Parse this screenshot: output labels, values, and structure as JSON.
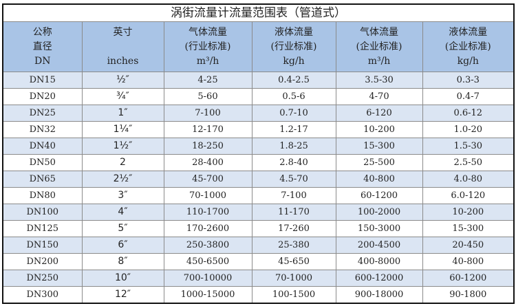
{
  "title": "涡街流量计流量范围表（管道式）",
  "headers": [
    {
      "l1": "公称",
      "l2": "直径",
      "l3": "DN"
    },
    {
      "l1": "英寸",
      "l2": "",
      "l3": "inches"
    },
    {
      "l1": "气体流量",
      "l2": "(行业标准)",
      "l3": "m³/h"
    },
    {
      "l1": "液体流量",
      "l2": "(行业标准)",
      "l3": "kg/h"
    },
    {
      "l1": "气体流量",
      "l2": "(企业标准)",
      "l3": "m³/h"
    },
    {
      "l1": "液体流量",
      "l2": "(企业标准)",
      "l3": "kg/h"
    }
  ],
  "rows": [
    [
      "DN15",
      "½″",
      "4-25",
      "0.4-2.5",
      "3.5-30",
      "0.3-3"
    ],
    [
      "DN20",
      "¾″",
      "5-60",
      "0.5-6",
      "4-70",
      "0.4-7"
    ],
    [
      "DN25",
      "1″",
      "7-100",
      "0.7-10",
      "6-120",
      "0.6-12"
    ],
    [
      "DN32",
      "1¼″",
      "12-170",
      "1.2-17",
      "10-200",
      "1.0-20"
    ],
    [
      "DN40",
      "1½″",
      "18-250",
      "1.8-25",
      "15-300",
      "1.5-30"
    ],
    [
      "DN50",
      "2",
      "28-400",
      "2.8-40",
      "25-500",
      "2.5-50"
    ],
    [
      "DN65",
      "2½″",
      "45-700",
      "4.5-70",
      "40-800",
      "4.0-80"
    ],
    [
      "DN80",
      "3″",
      "70-1000",
      "7-100",
      "60-1200",
      "6.0-120"
    ],
    [
      "DN100",
      "4″",
      "110-1700",
      "11-170",
      "100-2000",
      "10-200"
    ],
    [
      "DN125",
      "5″",
      "170-2600",
      "17-260",
      "150-3000",
      "15-300"
    ],
    [
      "DN150",
      "6″",
      "250-3800",
      "25-380",
      "200-4500",
      "20-450"
    ],
    [
      "DN200",
      "8″",
      "450-6500",
      "45-650",
      "400-8000",
      "40-800"
    ],
    [
      "DN250",
      "10″",
      "700-10000",
      "70-1000",
      "600-12000",
      "60-1200"
    ],
    [
      "DN300",
      "12″",
      "1000-15000",
      "100-1500",
      "900-18000",
      "90-1800"
    ]
  ]
}
